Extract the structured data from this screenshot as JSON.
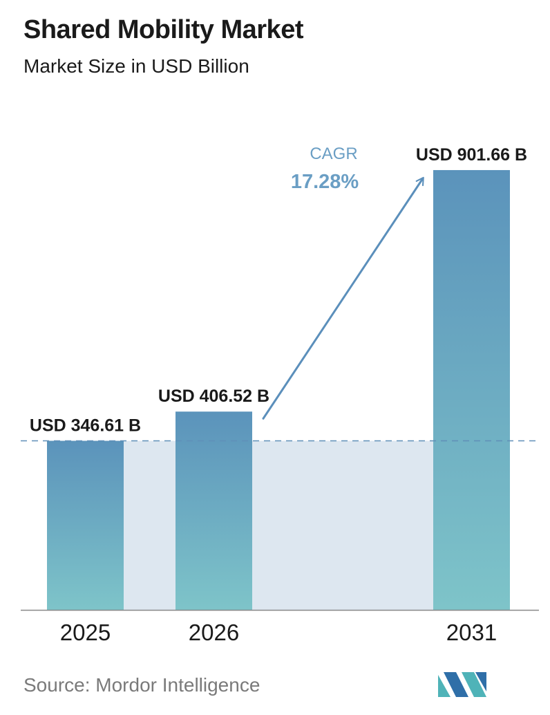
{
  "header": {
    "title": "Shared Mobility Market",
    "subtitle": "Market Size in USD Billion"
  },
  "footer": {
    "source": "Source:  Mordor Intelligence"
  },
  "cagr": {
    "label": "CAGR",
    "value": "17.28%"
  },
  "colors": {
    "bar_top": "#5b93bb",
    "bar_bottom": "#7ec4c9",
    "band": "#dde7f0",
    "cagr_text": "#6a9ec4",
    "arrow": "#5b8fbb",
    "dashed_line": "#5f8fb8",
    "axis": "#888888",
    "logo_teal": "#4fb3b8",
    "logo_blue": "#2f6fa8"
  },
  "chart_data": {
    "type": "bar",
    "title": "Shared Mobility Market",
    "subtitle": "Market Size in USD Billion",
    "categories": [
      "2025",
      "2026",
      "2031"
    ],
    "values": [
      346.61,
      406.52,
      901.66
    ],
    "data_labels": [
      "USD 346.61 B",
      "USD 406.52 B",
      "USD 901.66 B"
    ],
    "xlabel": "",
    "ylabel": "",
    "ylim": [
      0,
      1000
    ],
    "grid": false,
    "annotation": "CAGR 17.28%"
  }
}
